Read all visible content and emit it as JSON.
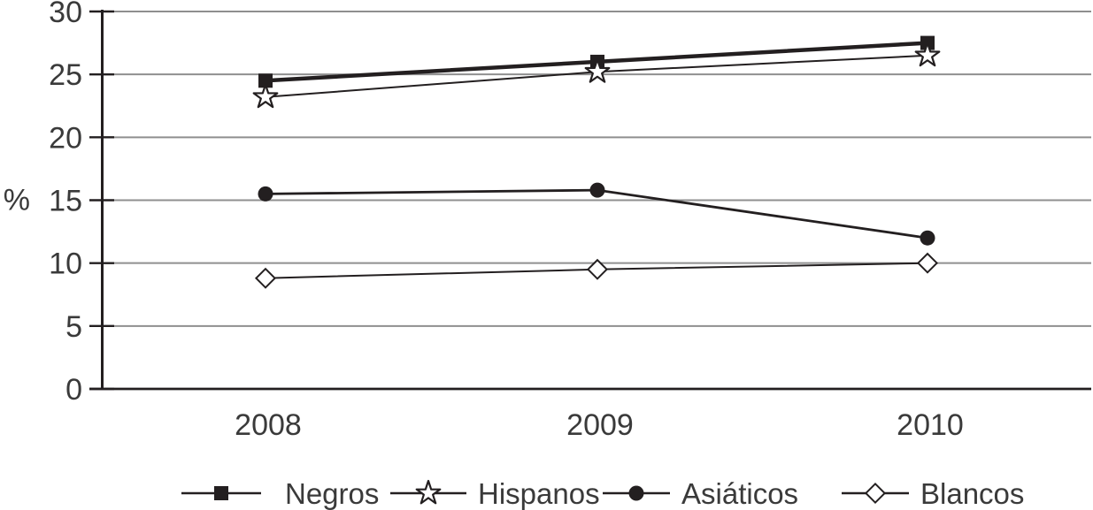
{
  "chart_data": {
    "type": "line",
    "title": "",
    "xlabel": "",
    "ylabel": "%",
    "categories": [
      "2008",
      "2009",
      "2010"
    ],
    "series": [
      {
        "name": "Negros",
        "values": [
          24.5,
          26.0,
          27.5
        ],
        "marker": "filled-square",
        "line_width": 4.5
      },
      {
        "name": "Hispanos",
        "values": [
          23.2,
          25.2,
          26.5
        ],
        "marker": "open-star",
        "line_width": 2.0
      },
      {
        "name": "Asiáticos",
        "values": [
          15.5,
          15.8,
          12.0
        ],
        "marker": "filled-circle",
        "line_width": 2.8
      },
      {
        "name": "Blancos",
        "values": [
          8.8,
          9.5,
          10.0
        ],
        "marker": "open-diamond",
        "line_width": 2.0
      }
    ],
    "ylim": [
      0,
      30
    ],
    "yticks": [
      0,
      5,
      10,
      15,
      20,
      25,
      30
    ],
    "grid": true,
    "legend_position": "bottom",
    "colors": {
      "ink": "#231f20",
      "grid": "#8f8f8f",
      "text": "#3a3a3a",
      "marker_fill_open": "#ffffff",
      "background": "#ffffff"
    }
  }
}
